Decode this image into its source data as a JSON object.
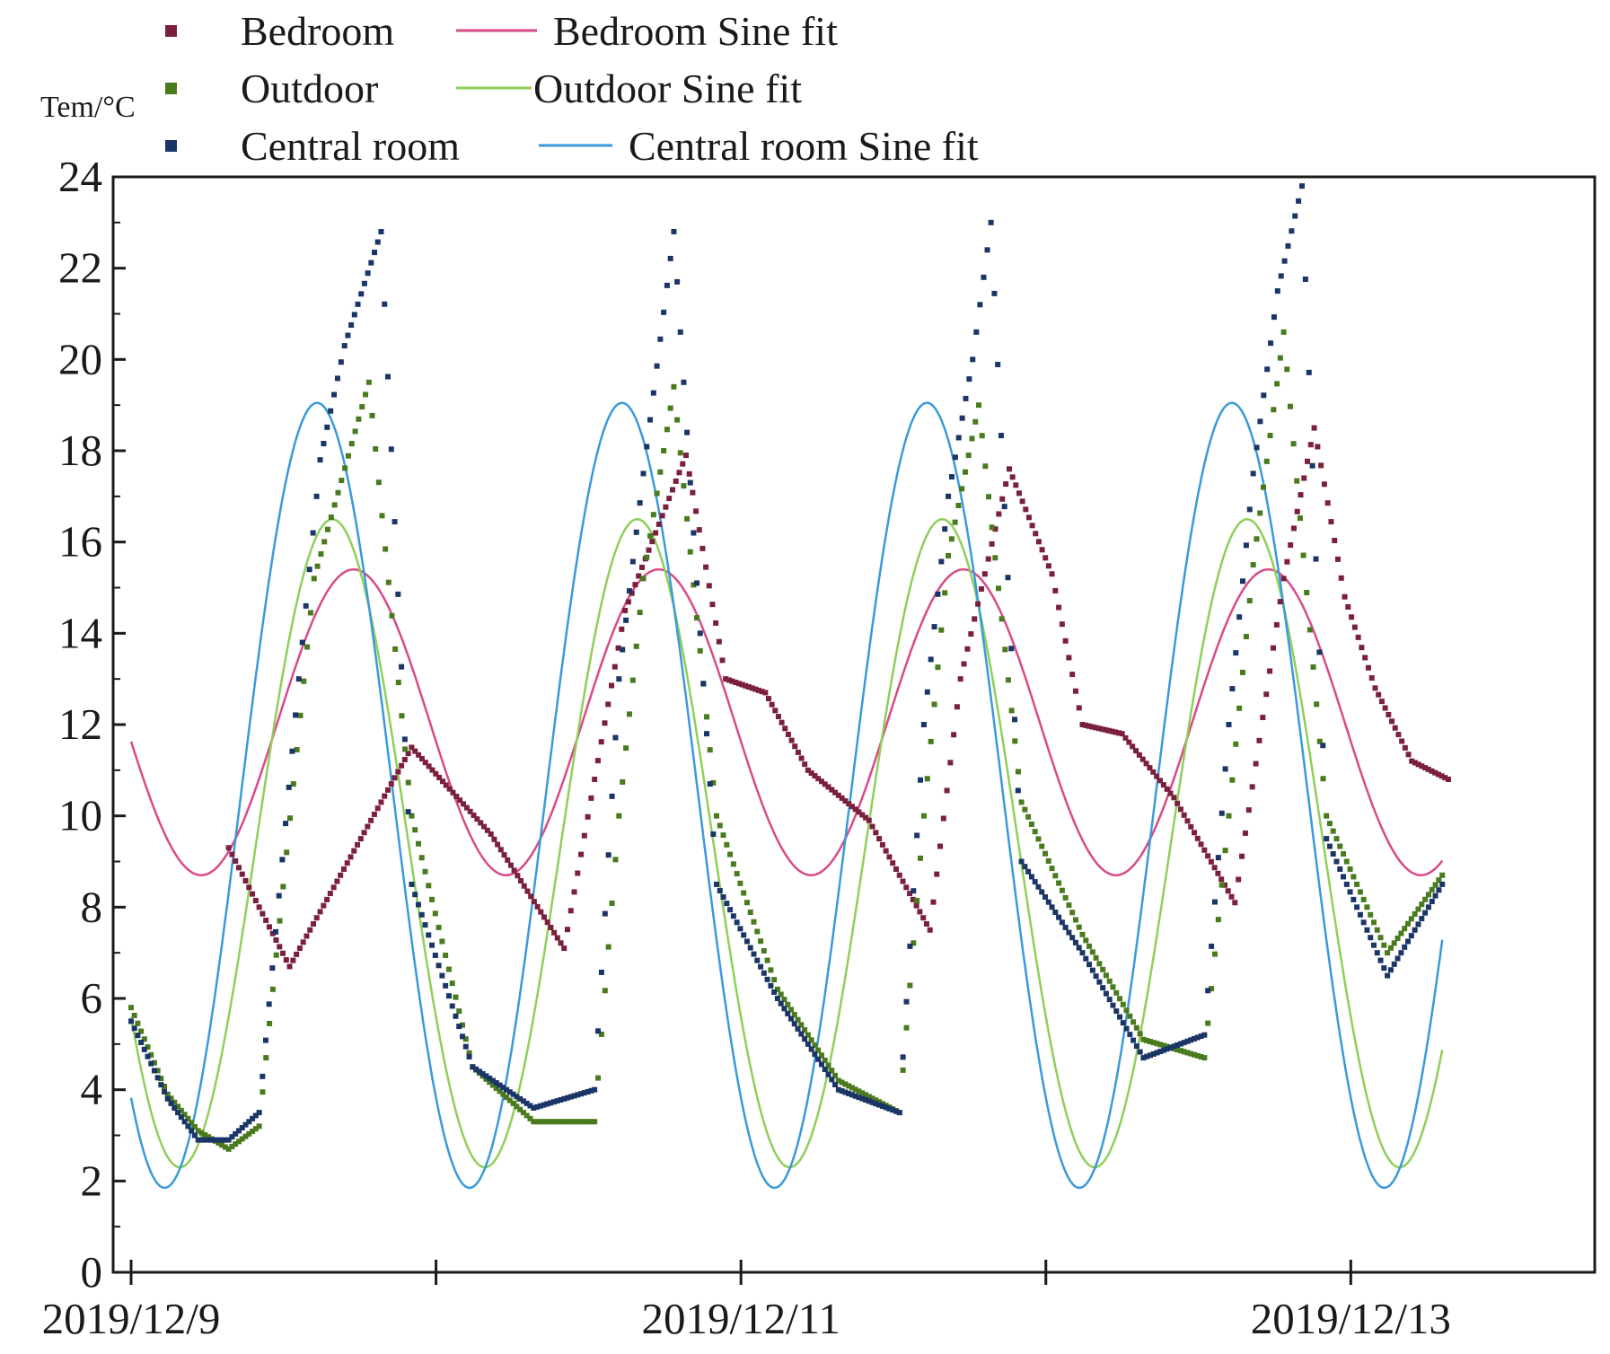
{
  "chart_data": {
    "type": "scatter",
    "title": "",
    "xlabel": "",
    "ylabel": "Tem/°C",
    "xlim": [
      0,
      4.8
    ],
    "ylim": [
      0,
      24
    ],
    "x_ticks": [
      {
        "value": 0,
        "label": "2019/12/9"
      },
      {
        "value": 1,
        "label": ""
      },
      {
        "value": 2,
        "label": "2019/12/11"
      },
      {
        "value": 3,
        "label": ""
      },
      {
        "value": 4,
        "label": "2019/12/13"
      }
    ],
    "y_ticks": [
      0,
      2,
      4,
      6,
      8,
      10,
      12,
      14,
      16,
      18,
      20,
      22,
      24
    ],
    "y_tick_labels": [
      "0",
      "2",
      "4",
      "6",
      "8",
      "10",
      "12",
      "14",
      "16",
      "18",
      "20",
      "22",
      "24"
    ],
    "legend": {
      "position": "top-left, above plot",
      "entries": [
        {
          "label": "Bedroom",
          "kind": "marker",
          "series": "bedroom"
        },
        {
          "label": "Bedroom Sine fit",
          "kind": "line",
          "series": "bedroom_fit"
        },
        {
          "label": "Outdoor",
          "kind": "marker",
          "series": "outdoor"
        },
        {
          "label": "Outdoor Sine fit",
          "kind": "line",
          "series": "outdoor_fit"
        },
        {
          "label": "Central room",
          "kind": "marker",
          "series": "central"
        },
        {
          "label": "Central room Sine fit",
          "kind": "line",
          "series": "central_fit"
        }
      ]
    },
    "series": [
      {
        "id": "bedroom",
        "name": "Bedroom",
        "kind": "scatter",
        "color": "#7a1f3d",
        "x": [
          0.32,
          0.52,
          0.92,
          1.18,
          1.42,
          1.62,
          1.82,
          1.95,
          2.08,
          2.22,
          2.42,
          2.62,
          2.72,
          2.88,
          3.02,
          3.12,
          3.25,
          3.42,
          3.62,
          3.78,
          3.88,
          3.98,
          4.08,
          4.2,
          4.32
        ],
        "y": [
          9.3,
          6.7,
          11.5,
          9.6,
          7.1,
          14.5,
          17.9,
          13.0,
          12.7,
          11.0,
          9.9,
          7.5,
          13.0,
          17.6,
          15.3,
          12.0,
          11.8,
          10.4,
          8.1,
          15.2,
          18.5,
          14.8,
          12.8,
          11.2,
          10.8
        ]
      },
      {
        "id": "outdoor",
        "name": "Outdoor",
        "kind": "scatter",
        "color": "#4a7a1e",
        "x": [
          0.0,
          0.12,
          0.22,
          0.32,
          0.42,
          0.6,
          0.78,
          0.92,
          1.12,
          1.32,
          1.52,
          1.6,
          1.68,
          1.78,
          1.92,
          2.12,
          2.32,
          2.52,
          2.6,
          2.68,
          2.78,
          2.92,
          3.12,
          3.32,
          3.52,
          3.6,
          3.68,
          3.78,
          3.92,
          4.12,
          4.3
        ],
        "y": [
          5.8,
          3.9,
          3.1,
          2.7,
          3.2,
          15.2,
          19.5,
          10.0,
          4.5,
          3.3,
          3.3,
          10.0,
          15.2,
          19.4,
          10.0,
          6.2,
          4.2,
          3.5,
          10.0,
          15.7,
          19.0,
          10.3,
          7.4,
          5.1,
          4.7,
          10.0,
          15.5,
          20.6,
          10.0,
          7.0,
          8.7
        ]
      },
      {
        "id": "central",
        "name": "Central room",
        "kind": "scatter",
        "color": "#1a3566",
        "x": [
          0.0,
          0.12,
          0.22,
          0.32,
          0.42,
          0.55,
          0.62,
          0.7,
          0.82,
          0.92,
          1.12,
          1.32,
          1.52,
          1.6,
          1.68,
          1.78,
          1.92,
          2.12,
          2.32,
          2.52,
          2.6,
          2.68,
          2.76,
          2.82,
          2.92,
          3.12,
          3.32,
          3.52,
          3.6,
          3.68,
          3.76,
          3.84,
          3.92,
          4.12,
          4.3
        ],
        "y": [
          5.5,
          3.8,
          2.9,
          2.9,
          3.5,
          13.0,
          17.8,
          20.3,
          22.8,
          8.5,
          4.5,
          3.6,
          4.0,
          13.0,
          17.5,
          22.8,
          8.5,
          6.0,
          4.0,
          3.5,
          12.0,
          17.0,
          20.0,
          23.0,
          9.0,
          7.0,
          4.7,
          5.2,
          12.0,
          17.5,
          21.5,
          23.8,
          9.5,
          6.5,
          8.5
        ]
      },
      {
        "id": "bedroom_fit",
        "name": "Bedroom Sine fit",
        "kind": "sine",
        "color": "#d94a88",
        "offset": 12.05,
        "amplitude": 3.35,
        "period": 1,
        "peak_x": 0.73,
        "x_range": [
          0,
          4.3
        ]
      },
      {
        "id": "outdoor_fit",
        "name": "Outdoor Sine fit",
        "kind": "sine",
        "color": "#8fcf5a",
        "offset": 9.4,
        "amplitude": 7.1,
        "period": 1,
        "peak_x": 0.66,
        "x_range": [
          0,
          4.3
        ]
      },
      {
        "id": "central_fit",
        "name": "Central room Sine fit",
        "kind": "sine",
        "color": "#3a9ad9",
        "offset": 10.45,
        "amplitude": 8.6,
        "period": 1,
        "peak_x": 0.61,
        "x_range": [
          0,
          4.3
        ]
      }
    ]
  }
}
